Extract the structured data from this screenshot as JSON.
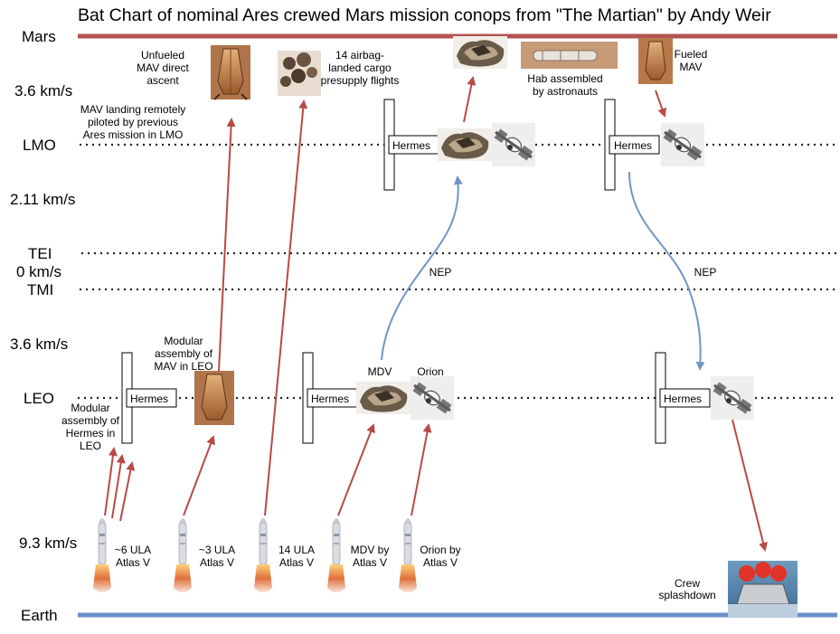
{
  "title": "Bat Chart of nominal Ares crewed Mars mission conops from \"The Martian\" by Andy Weir",
  "colors": {
    "mars": "#b35450",
    "earth": "#6b8fc6",
    "red_arrow": "#b84a45",
    "blue_arrow": "#7096c8",
    "dotted": "#222222"
  },
  "levels": {
    "mars": "Mars",
    "dv_mars_lmo": "3.6 km/s",
    "lmo": "LMO",
    "dv_lmo_tei": "2.11 km/s",
    "tei": "TEI",
    "dv_tei_tmi": "0 km/s",
    "tmi": "TMI",
    "dv_tmi_leo": "3.6 km/s",
    "leo": "LEO",
    "dv_leo_earth": "9.3 km/s",
    "earth": "Earth"
  },
  "annotations": {
    "unfueled_mav": [
      "Unfueled",
      "MAV direct",
      "ascent"
    ],
    "airbag_cargo": [
      "14 airbag-",
      "landed cargo",
      "presupply flights"
    ],
    "mav_remote_landing": [
      "MAV landing remotely",
      "piloted by previous",
      "Ares mission in LMO"
    ],
    "hab_assembled": [
      "Hab assembled",
      "by astronauts"
    ],
    "fueled_mav": [
      "Fueled",
      "MAV"
    ],
    "modular_mav": [
      "Modular",
      "assembly of",
      "MAV in LEO"
    ],
    "modular_hermes": [
      "Modular",
      "assembly of",
      "Hermes in",
      "LEO"
    ],
    "nep_outbound": "NEP",
    "nep_return": "NEP",
    "mdv": "MDV",
    "orion": "Orion",
    "crew_splashdown": [
      "Crew",
      "splashdown"
    ]
  },
  "hermes_label": "Hermes",
  "launches": [
    [
      "~6 ULA",
      "Atlas V"
    ],
    [
      "~3 ULA",
      "Atlas V"
    ],
    [
      "14 ULA",
      "Atlas V"
    ],
    [
      "MDV by",
      "Atlas V"
    ],
    [
      "Orion by",
      "Atlas V"
    ]
  ]
}
